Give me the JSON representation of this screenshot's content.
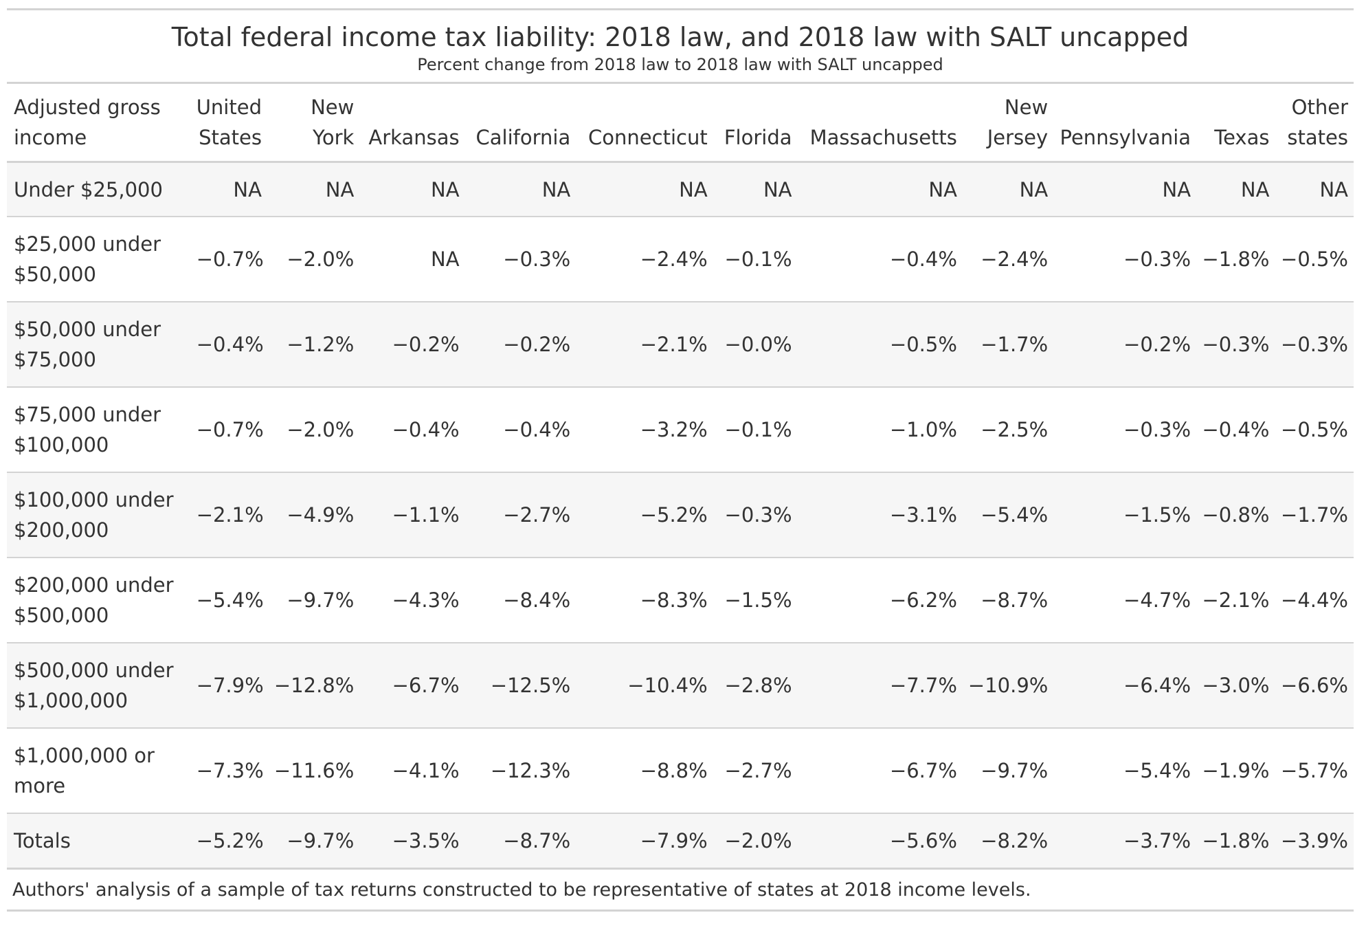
{
  "title": "Total federal income tax liability: 2018 law, and 2018 law with SALT uncapped",
  "subtitle": "Percent change from 2018 law to 2018 law with SALT uncapped",
  "columns": [
    "Adjusted gross income",
    "United States",
    "New York",
    "Arkansas",
    "California",
    "Connecticut",
    "Florida",
    "Massachusetts",
    "New Jersey",
    "Pennsylvania",
    "Texas",
    "Other states"
  ],
  "rows": [
    {
      "income": "Under $25,000",
      "values": [
        "NA",
        "NA",
        "NA",
        "NA",
        "NA",
        "NA",
        "NA",
        "NA",
        "NA",
        "NA",
        "NA"
      ]
    },
    {
      "income": "$25,000 under $50,000",
      "values": [
        "−0.7%",
        "−2.0%",
        "NA",
        "−0.3%",
        "−2.4%",
        "−0.1%",
        "−0.4%",
        "−2.4%",
        "−0.3%",
        "−1.8%",
        "−0.5%"
      ]
    },
    {
      "income": "$50,000 under $75,000",
      "values": [
        "−0.4%",
        "−1.2%",
        "−0.2%",
        "−0.2%",
        "−2.1%",
        "−0.0%",
        "−0.5%",
        "−1.7%",
        "−0.2%",
        "−0.3%",
        "−0.3%"
      ]
    },
    {
      "income": "$75,000 under $100,000",
      "values": [
        "−0.7%",
        "−2.0%",
        "−0.4%",
        "−0.4%",
        "−3.2%",
        "−0.1%",
        "−1.0%",
        "−2.5%",
        "−0.3%",
        "−0.4%",
        "−0.5%"
      ]
    },
    {
      "income": "$100,000 under $200,000",
      "values": [
        "−2.1%",
        "−4.9%",
        "−1.1%",
        "−2.7%",
        "−5.2%",
        "−0.3%",
        "−3.1%",
        "−5.4%",
        "−1.5%",
        "−0.8%",
        "−1.7%"
      ]
    },
    {
      "income": "$200,000 under $500,000",
      "values": [
        "−5.4%",
        "−9.7%",
        "−4.3%",
        "−8.4%",
        "−8.3%",
        "−1.5%",
        "−6.2%",
        "−8.7%",
        "−4.7%",
        "−2.1%",
        "−4.4%"
      ]
    },
    {
      "income": "$500,000 under $1,000,000",
      "values": [
        "−7.9%",
        "−12.8%",
        "−6.7%",
        "−12.5%",
        "−10.4%",
        "−2.8%",
        "−7.7%",
        "−10.9%",
        "−6.4%",
        "−3.0%",
        "−6.6%"
      ]
    },
    {
      "income": "$1,000,000 or more",
      "values": [
        "−7.3%",
        "−11.6%",
        "−4.1%",
        "−12.3%",
        "−8.8%",
        "−2.7%",
        "−6.7%",
        "−9.7%",
        "−5.4%",
        "−1.9%",
        "−5.7%"
      ]
    },
    {
      "income": "Totals",
      "values": [
        "−5.2%",
        "−9.7%",
        "−3.5%",
        "−8.7%",
        "−7.9%",
        "−2.0%",
        "−5.6%",
        "−8.2%",
        "−3.7%",
        "−1.8%",
        "−3.9%"
      ]
    }
  ],
  "source_note": "Authors' analysis of a sample of tax returns constructed to be representative of states at 2018 income levels."
}
